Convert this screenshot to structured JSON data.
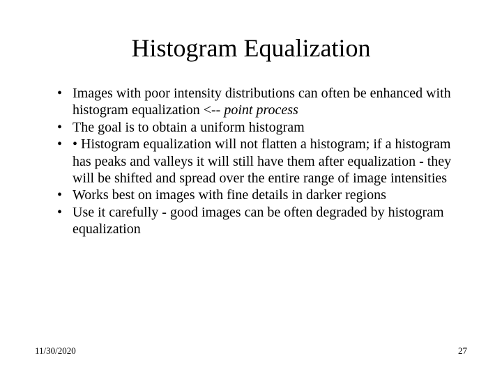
{
  "slide": {
    "title": "Histogram Equalization",
    "bullets": [
      {
        "text": "Images with poor intensity distributions can often be enhanced with histogram equalization <-- ",
        "italic_suffix": "point process"
      },
      {
        "text": "The goal is to obtain a uniform histogram"
      },
      {
        "text": "• Histogram equalization will not flatten a histogram; if a histogram has peaks and valleys it will still have them after equalization - they will be shifted and spread over the entire range of image intensities"
      },
      {
        "text": "Works best on images with fine details in darker regions"
      },
      {
        "text": "Use it carefully - good images can be often degraded by histogram equalization"
      }
    ],
    "footer": {
      "date": "11/30/2020",
      "page": "27"
    },
    "style": {
      "background_color": "#ffffff",
      "text_color": "#000000",
      "title_fontsize": 36,
      "body_fontsize": 20,
      "footer_fontsize": 13,
      "font_family": "Times New Roman"
    }
  }
}
